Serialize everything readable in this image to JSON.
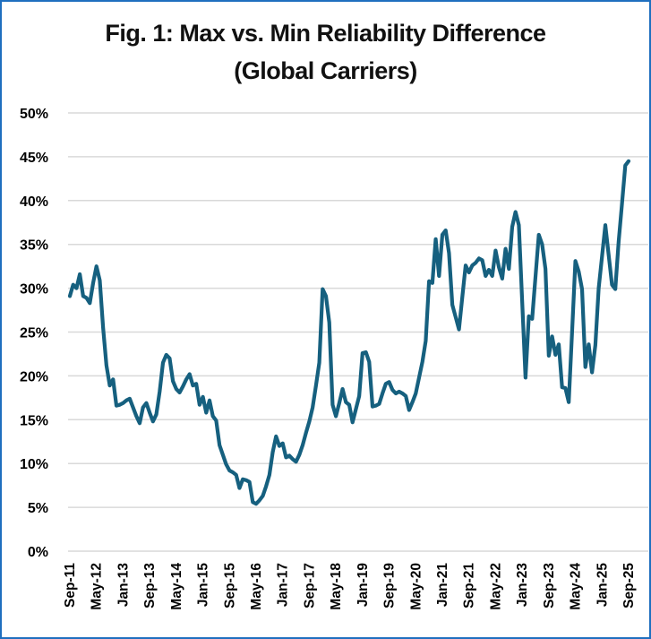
{
  "chart_data": {
    "type": "line",
    "title": "Fig. 1: Max vs. Min Reliability Difference",
    "subtitle": "(Global Carriers)",
    "xlabel": "",
    "ylabel": "",
    "ylim": [
      0,
      50
    ],
    "y_ticks": [
      "0%",
      "5%",
      "10%",
      "15%",
      "20%",
      "25%",
      "30%",
      "35%",
      "40%",
      "45%",
      "50%"
    ],
    "x_start": "Sep-11",
    "x_end": "Sep-25",
    "x_ticks": [
      "Sep-11",
      "May-12",
      "Jan-13",
      "Sep-13",
      "May-14",
      "Jan-15",
      "Sep-15",
      "May-16",
      "Jan-17",
      "Sep-17",
      "May-18",
      "Jan-19",
      "Sep-19",
      "May-20",
      "Jan-21",
      "Sep-21",
      "May-22",
      "Jan-23",
      "Sep-23",
      "May-24",
      "Jan-25",
      "Sep-25"
    ],
    "grid": true,
    "legend": "none",
    "line_color": "#16607f",
    "series": [
      {
        "name": "Max vs. Min Reliability Difference",
        "points": [
          [
            "Sep-11",
            29.1
          ],
          [
            "Oct-11",
            30.4
          ],
          [
            "Nov-11",
            30.0
          ],
          [
            "Dec-11",
            31.6
          ],
          [
            "Jan-12",
            29.1
          ],
          [
            "Feb-12",
            28.9
          ],
          [
            "Mar-12",
            28.3
          ],
          [
            "Apr-12",
            30.6
          ],
          [
            "May-12",
            32.5
          ],
          [
            "Jun-12",
            30.9
          ],
          [
            "Jul-12",
            25.5
          ],
          [
            "Aug-12",
            21.2
          ],
          [
            "Sep-12",
            18.9
          ],
          [
            "Oct-12",
            19.6
          ],
          [
            "Nov-12",
            16.6
          ],
          [
            "Dec-12",
            16.7
          ],
          [
            "Jan-13",
            16.9
          ],
          [
            "Feb-13",
            17.2
          ],
          [
            "Mar-13",
            17.4
          ],
          [
            "Apr-13",
            16.4
          ],
          [
            "May-13",
            15.4
          ],
          [
            "Jun-13",
            14.6
          ],
          [
            "Jul-13",
            16.4
          ],
          [
            "Aug-13",
            16.9
          ],
          [
            "Sep-13",
            15.8
          ],
          [
            "Oct-13",
            14.8
          ],
          [
            "Nov-13",
            15.6
          ],
          [
            "Dec-13",
            18.2
          ],
          [
            "Jan-14",
            21.5
          ],
          [
            "Feb-14",
            22.4
          ],
          [
            "Mar-14",
            22.0
          ],
          [
            "Apr-14",
            19.4
          ],
          [
            "May-14",
            18.5
          ],
          [
            "Jun-14",
            18.1
          ],
          [
            "Jul-14",
            18.8
          ],
          [
            "Aug-14",
            19.6
          ],
          [
            "Sep-14",
            20.2
          ],
          [
            "Oct-14",
            18.9
          ],
          [
            "Nov-14",
            19.1
          ],
          [
            "Dec-14",
            16.7
          ],
          [
            "Jan-15",
            17.6
          ],
          [
            "Feb-15",
            15.8
          ],
          [
            "Mar-15",
            17.2
          ],
          [
            "Apr-15",
            15.4
          ],
          [
            "May-15",
            14.9
          ],
          [
            "Jun-15",
            12.1
          ],
          [
            "Jul-15",
            11.0
          ],
          [
            "Aug-15",
            9.9
          ],
          [
            "Sep-15",
            9.2
          ],
          [
            "Oct-15",
            9.0
          ],
          [
            "Nov-15",
            8.7
          ],
          [
            "Dec-15",
            7.2
          ],
          [
            "Jan-16",
            8.2
          ],
          [
            "Feb-16",
            8.1
          ],
          [
            "Mar-16",
            7.9
          ],
          [
            "Apr-16",
            5.6
          ],
          [
            "May-16",
            5.4
          ],
          [
            "Jun-16",
            5.8
          ],
          [
            "Jul-16",
            6.3
          ],
          [
            "Aug-16",
            7.4
          ],
          [
            "Sep-16",
            8.7
          ],
          [
            "Oct-16",
            11.3
          ],
          [
            "Nov-16",
            13.1
          ],
          [
            "Dec-16",
            12.0
          ],
          [
            "Jan-17",
            12.3
          ],
          [
            "Feb-17",
            10.7
          ],
          [
            "Mar-17",
            10.9
          ],
          [
            "Apr-17",
            10.5
          ],
          [
            "May-17",
            10.2
          ],
          [
            "Jun-17",
            11.0
          ],
          [
            "Jul-17",
            12.1
          ],
          [
            "Aug-17",
            13.5
          ],
          [
            "Sep-17",
            14.8
          ],
          [
            "Oct-17",
            16.4
          ],
          [
            "Nov-17",
            18.9
          ],
          [
            "Dec-17",
            21.5
          ],
          [
            "Jan-18",
            29.9
          ],
          [
            "Feb-18",
            29.1
          ],
          [
            "Mar-18",
            26.1
          ],
          [
            "Apr-18",
            16.7
          ],
          [
            "May-18",
            15.4
          ],
          [
            "Jun-18",
            16.9
          ],
          [
            "Jul-18",
            18.5
          ],
          [
            "Aug-18",
            17.0
          ],
          [
            "Sep-18",
            16.7
          ],
          [
            "Oct-18",
            14.7
          ],
          [
            "Nov-18",
            16.2
          ],
          [
            "Dec-18",
            17.7
          ],
          [
            "Jan-19",
            22.6
          ],
          [
            "Feb-19",
            22.7
          ],
          [
            "Mar-19",
            21.6
          ],
          [
            "Apr-19",
            16.5
          ],
          [
            "May-19",
            16.6
          ],
          [
            "Jun-19",
            16.8
          ],
          [
            "Jul-19",
            18.0
          ],
          [
            "Aug-19",
            19.1
          ],
          [
            "Sep-19",
            19.3
          ],
          [
            "Oct-19",
            18.4
          ],
          [
            "Nov-19",
            18.0
          ],
          [
            "Dec-19",
            18.2
          ],
          [
            "Jan-20",
            18.0
          ],
          [
            "Feb-20",
            17.7
          ],
          [
            "Mar-20",
            16.1
          ],
          [
            "Apr-20",
            17.0
          ],
          [
            "May-20",
            18.0
          ],
          [
            "Jun-20",
            19.8
          ],
          [
            "Jul-20",
            21.6
          ],
          [
            "Aug-20",
            24.0
          ],
          [
            "Sep-20",
            30.8
          ],
          [
            "Oct-20",
            30.6
          ],
          [
            "Nov-20",
            35.6
          ],
          [
            "Dec-20",
            31.4
          ],
          [
            "Jan-21",
            36.1
          ],
          [
            "Feb-21",
            36.6
          ],
          [
            "Mar-21",
            34.0
          ],
          [
            "Apr-21",
            28.1
          ],
          [
            "May-21",
            26.7
          ],
          [
            "Jun-21",
            25.3
          ],
          [
            "Jul-21",
            29.0
          ],
          [
            "Aug-21",
            32.6
          ],
          [
            "Sep-21",
            31.8
          ],
          [
            "Oct-21",
            32.6
          ],
          [
            "Nov-21",
            32.9
          ],
          [
            "Dec-21",
            33.4
          ],
          [
            "Jan-22",
            33.2
          ],
          [
            "Feb-22",
            31.4
          ],
          [
            "Mar-22",
            32.1
          ],
          [
            "Apr-22",
            31.4
          ],
          [
            "May-22",
            34.3
          ],
          [
            "Jun-22",
            32.4
          ],
          [
            "Jul-22",
            31.1
          ],
          [
            "Aug-22",
            34.5
          ],
          [
            "Sep-22",
            32.2
          ],
          [
            "Oct-22",
            37.0
          ],
          [
            "Nov-22",
            38.7
          ],
          [
            "Dec-22",
            37.2
          ],
          [
            "Jan-23",
            28.5
          ],
          [
            "Feb-23",
            19.8
          ],
          [
            "Mar-23",
            26.8
          ],
          [
            "Apr-23",
            26.5
          ],
          [
            "May-23",
            31.3
          ],
          [
            "Jun-23",
            36.1
          ],
          [
            "Jul-23",
            35.0
          ],
          [
            "Aug-23",
            32.2
          ],
          [
            "Sep-23",
            22.3
          ],
          [
            "Oct-23",
            24.5
          ],
          [
            "Nov-23",
            22.4
          ],
          [
            "Dec-23",
            23.6
          ],
          [
            "Jan-24",
            18.7
          ],
          [
            "Feb-24",
            18.6
          ],
          [
            "Mar-24",
            17.0
          ],
          [
            "Apr-24",
            25.0
          ],
          [
            "May-24",
            33.1
          ],
          [
            "Jun-24",
            31.9
          ],
          [
            "Jul-24",
            29.9
          ],
          [
            "Aug-24",
            21.0
          ],
          [
            "Sep-24",
            23.6
          ],
          [
            "Oct-24",
            20.4
          ],
          [
            "Nov-24",
            23.5
          ],
          [
            "Dec-24",
            30.0
          ],
          [
            "Jan-25",
            33.6
          ],
          [
            "Feb-25",
            37.2
          ],
          [
            "Mar-25",
            33.8
          ],
          [
            "Apr-25",
            30.4
          ],
          [
            "May-25",
            29.9
          ],
          [
            "Jun-25",
            35.3
          ],
          [
            "Jul-25",
            39.6
          ],
          [
            "Aug-25",
            44.0
          ],
          [
            "Sep-25",
            44.5
          ]
        ]
      }
    ]
  }
}
